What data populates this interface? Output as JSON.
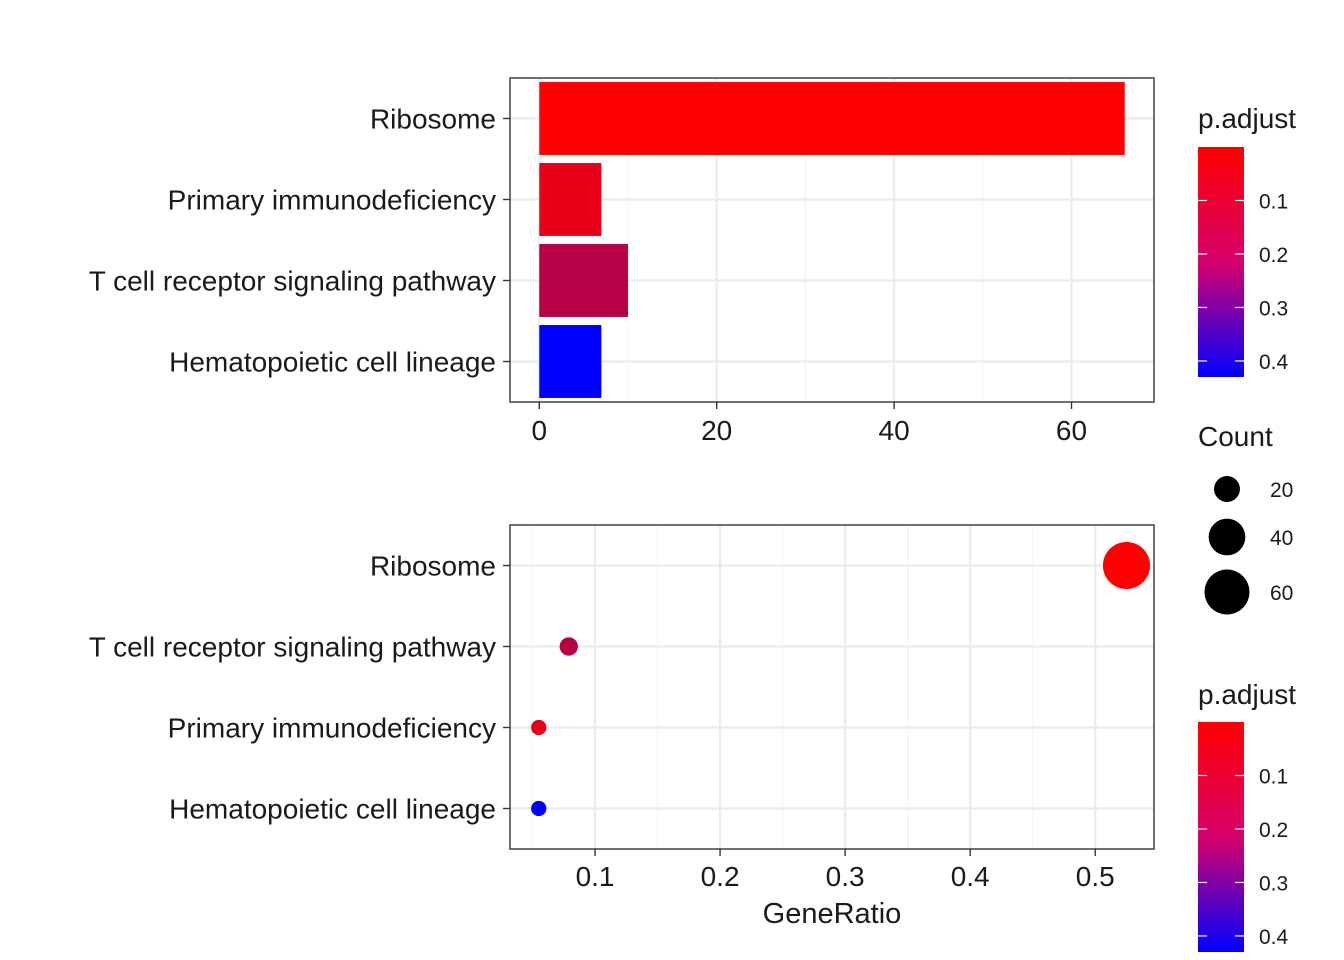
{
  "chart_data": [
    {
      "type": "bar",
      "orientation": "horizontal",
      "categories": [
        "Ribosome",
        "Primary immunodeficiency",
        "T cell receptor signaling pathway",
        "Hematopoietic cell lineage"
      ],
      "values": [
        66,
        7,
        10,
        7
      ],
      "p_adjust": [
        0.0,
        0.04,
        0.12,
        0.43
      ],
      "xlabel": "",
      "ylabel": "",
      "xticks": [
        "0",
        "20",
        "40",
        "60"
      ],
      "xtick_values": [
        0,
        20,
        40,
        60
      ],
      "xlim": [
        -3.3,
        69.3
      ],
      "grid": true,
      "legend_position": "right",
      "legend": {
        "color_title": "p.adjust",
        "color_ticks": [
          "0.1",
          "0.2",
          "0.3",
          "0.4"
        ],
        "color_tick_values": [
          0.1,
          0.2,
          0.3,
          0.4
        ],
        "color_range": [
          0.0,
          0.43
        ],
        "low_color": "#ff0000",
        "high_color": "#0000ff"
      }
    },
    {
      "type": "scatter",
      "categories": [
        "Ribosome",
        "T cell receptor signaling pathway",
        "Primary immunodeficiency",
        "Hematopoietic cell lineage"
      ],
      "x": [
        0.525,
        0.079,
        0.055,
        0.055
      ],
      "count": [
        66,
        10,
        7,
        7
      ],
      "p_adjust": [
        0.0,
        0.12,
        0.04,
        0.43
      ],
      "xlabel": "GeneRatio",
      "ylabel": "",
      "xticks": [
        "0.1",
        "0.2",
        "0.3",
        "0.4",
        "0.5"
      ],
      "xtick_values": [
        0.1,
        0.2,
        0.3,
        0.4,
        0.5
      ],
      "xlim": [
        0.032,
        0.547
      ],
      "grid": true,
      "legend_position": "right",
      "legend": {
        "size_title": "Count",
        "size_ticks": [
          "20",
          "40",
          "60"
        ],
        "size_tick_values": [
          20,
          40,
          60
        ],
        "color_title": "p.adjust",
        "color_ticks": [
          "0.1",
          "0.2",
          "0.3",
          "0.4"
        ],
        "color_tick_values": [
          0.1,
          0.2,
          0.3,
          0.4
        ],
        "color_range": [
          0.0,
          0.43
        ],
        "low_color": "#ff0000",
        "high_color": "#0000ff"
      }
    }
  ]
}
